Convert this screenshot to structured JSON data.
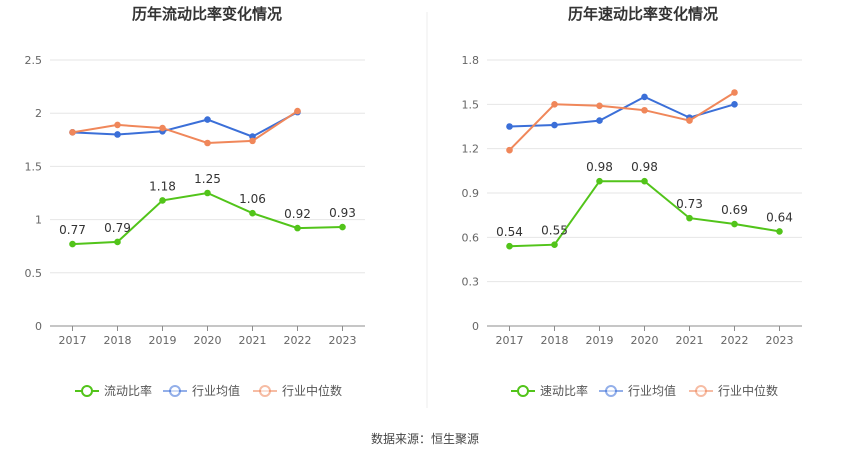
{
  "chart_data": [
    {
      "type": "line",
      "title": "历年流动比率变化情况",
      "categories": [
        "2017",
        "2018",
        "2019",
        "2020",
        "2021",
        "2022",
        "2023"
      ],
      "ylim": [
        0,
        2.5
      ],
      "yticks": [
        "0",
        "0.5",
        "1",
        "1.5",
        "2",
        "2.5"
      ],
      "ytick_values": [
        0,
        0.5,
        1,
        1.5,
        2,
        2.5
      ],
      "grid": true,
      "legend_position": "bottom",
      "series": [
        {
          "name": "流动比率",
          "color": "#52c41a",
          "values": [
            0.77,
            0.79,
            1.18,
            1.25,
            1.06,
            0.92,
            0.93
          ],
          "labels": [
            "0.77",
            "0.79",
            "1.18",
            "1.25",
            "1.06",
            "0.92",
            "0.93"
          ]
        },
        {
          "name": "行业均值",
          "color": "#3b6fd8",
          "values": [
            1.82,
            1.8,
            1.83,
            1.94,
            1.78,
            2.01,
            null
          ]
        },
        {
          "name": "行业中位数",
          "color": "#f0875a",
          "values": [
            1.82,
            1.89,
            1.86,
            1.72,
            1.74,
            2.02,
            null
          ]
        }
      ]
    },
    {
      "type": "line",
      "title": "历年速动比率变化情况",
      "categories": [
        "2017",
        "2018",
        "2019",
        "2020",
        "2021",
        "2022",
        "2023"
      ],
      "ylim": [
        0,
        1.8
      ],
      "yticks": [
        "0",
        "0.3",
        "0.6",
        "0.9",
        "1.2",
        "1.5",
        "1.8"
      ],
      "ytick_values": [
        0,
        0.3,
        0.6,
        0.9,
        1.2,
        1.5,
        1.8
      ],
      "grid": true,
      "legend_position": "bottom",
      "series": [
        {
          "name": "速动比率",
          "color": "#52c41a",
          "values": [
            0.54,
            0.55,
            0.98,
            0.98,
            0.73,
            0.69,
            0.64
          ],
          "labels": [
            "0.54",
            "0.55",
            "0.98",
            "0.98",
            "0.73",
            "0.69",
            "0.64"
          ]
        },
        {
          "name": "行业均值",
          "color": "#3b6fd8",
          "values": [
            1.35,
            1.36,
            1.39,
            1.55,
            1.41,
            1.5,
            null
          ]
        },
        {
          "name": "行业中位数",
          "color": "#f0875a",
          "values": [
            1.19,
            1.5,
            1.49,
            1.46,
            1.39,
            1.58,
            null
          ]
        }
      ]
    }
  ],
  "footer": {
    "source": "数据来源：恒生聚源"
  }
}
